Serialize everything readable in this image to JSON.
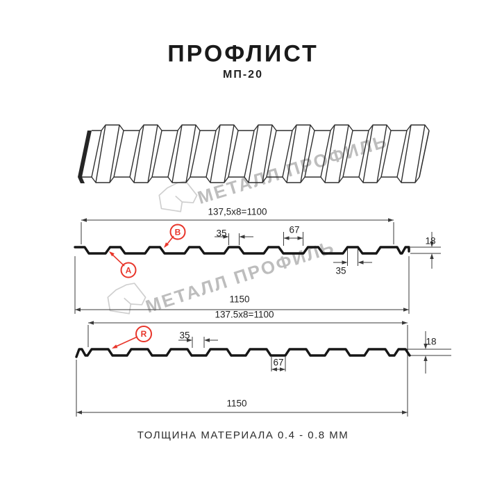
{
  "header": {
    "title": "ПРОФЛИСТ",
    "subtitle": "МП-20"
  },
  "watermark": {
    "text": "МЕТАЛЛ ПРОФИЛЬ"
  },
  "profile_top": {
    "label_a": "A",
    "label_b": "B",
    "dim_pitch": "137,5x8=1100",
    "dim_crest_width": "35",
    "dim_valley_width": "67",
    "dim_height": "18",
    "dim_crest_width_bottom": "35",
    "dim_total_width": "1150"
  },
  "profile_bottom": {
    "label_r": "R",
    "dim_pitch": "137.5x8=1100",
    "dim_crest_width": "35",
    "dim_valley_width": "67",
    "dim_height": "18",
    "dim_total_width": "1150"
  },
  "footer": {
    "text": "ТОЛЩИНА МАТЕРИАЛА 0.4 - 0.8 ММ"
  },
  "colors": {
    "accent_red": "#e8352a",
    "line": "#3a3a3a",
    "line_strong": "#161616",
    "watermark_text": "#bdbdbd",
    "watermark_logo": "#cfcfcf"
  }
}
